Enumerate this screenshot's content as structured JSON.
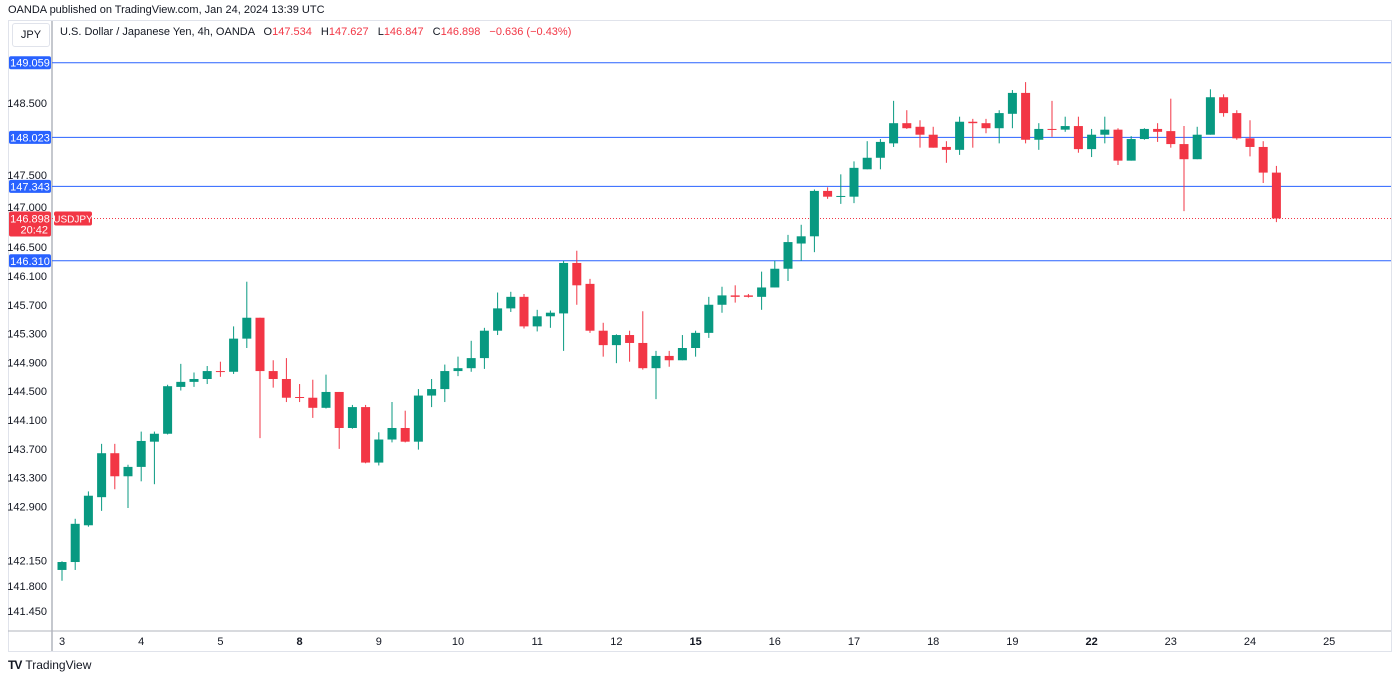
{
  "header": {
    "published": "OANDA published on TradingView.com, Jan 24, 2024 13:39 UTC"
  },
  "currency_button": "JPY",
  "legend": {
    "symbol": "U.S. Dollar / Japanese Yen, 4h, OANDA",
    "o_label": "O",
    "o": "147.534",
    "h_label": "H",
    "h": "147.627",
    "l_label": "L",
    "l": "146.847",
    "c_label": "C",
    "c": "146.898",
    "change": "−0.636 (−0.43%)"
  },
  "footer": {
    "brand": "TradingView",
    "logo": "TV"
  },
  "colors": {
    "up": "#089981",
    "down": "#f23645",
    "level": "#2962ff",
    "grid_axis": "#b2b5be"
  },
  "chart_data": {
    "type": "candlestick",
    "title": "U.S. Dollar / Japanese Yen, 4h, OANDA",
    "yaxis_position": "left",
    "ylim": [
      141.2,
      149.3
    ],
    "y_ticks": [
      "148.500",
      "147.500",
      "147.000",
      "146.500",
      "146.100",
      "145.700",
      "145.300",
      "144.900",
      "144.500",
      "144.100",
      "143.700",
      "143.300",
      "142.900",
      "142.150",
      "141.800",
      "141.450"
    ],
    "x_ticks": [
      {
        "label": "3",
        "index": 0,
        "bold": false
      },
      {
        "label": "4",
        "index": 6,
        "bold": false
      },
      {
        "label": "5",
        "index": 12,
        "bold": false
      },
      {
        "label": "8",
        "index": 18,
        "bold": true
      },
      {
        "label": "9",
        "index": 24,
        "bold": false
      },
      {
        "label": "10",
        "index": 30,
        "bold": false
      },
      {
        "label": "11",
        "index": 36,
        "bold": false
      },
      {
        "label": "12",
        "index": 42,
        "bold": false
      },
      {
        "label": "15",
        "index": 48,
        "bold": true
      },
      {
        "label": "16",
        "index": 54,
        "bold": false
      },
      {
        "label": "17",
        "index": 60,
        "bold": false
      },
      {
        "label": "18",
        "index": 66,
        "bold": false
      },
      {
        "label": "19",
        "index": 72,
        "bold": false
      },
      {
        "label": "22",
        "index": 78,
        "bold": true
      },
      {
        "label": "23",
        "index": 84,
        "bold": false
      },
      {
        "label": "24",
        "index": 90,
        "bold": false
      },
      {
        "label": "25",
        "index": 96,
        "bold": false
      }
    ],
    "levels": [
      {
        "label": "149.059",
        "value": 149.059
      },
      {
        "label": "148.023",
        "value": 148.023
      },
      {
        "label": "147.343",
        "value": 147.343
      },
      {
        "label": "146.310",
        "value": 146.31
      }
    ],
    "last_price": {
      "label": "146.898",
      "value": 146.898,
      "countdown": "20:42",
      "symbol": "USDJPY"
    },
    "ohlc": [
      [
        142.02,
        142.14,
        141.87,
        142.13
      ],
      [
        142.13,
        142.73,
        142.02,
        142.66
      ],
      [
        142.64,
        143.11,
        142.62,
        143.05
      ],
      [
        143.03,
        143.77,
        142.84,
        143.64
      ],
      [
        143.64,
        143.77,
        143.14,
        143.32
      ],
      [
        143.32,
        143.48,
        142.88,
        143.45
      ],
      [
        143.45,
        143.94,
        143.25,
        143.81
      ],
      [
        143.8,
        143.94,
        143.21,
        143.91
      ],
      [
        143.91,
        144.59,
        143.9,
        144.57
      ],
      [
        144.56,
        144.88,
        144.51,
        144.63
      ],
      [
        144.63,
        144.76,
        144.56,
        144.67
      ],
      [
        144.67,
        144.85,
        144.6,
        144.78
      ],
      [
        144.78,
        144.91,
        144.7,
        144.77
      ],
      [
        144.77,
        145.4,
        144.74,
        145.23
      ],
      [
        145.23,
        146.02,
        145.1,
        145.52
      ],
      [
        145.52,
        145.52,
        143.85,
        144.78
      ],
      [
        144.78,
        144.93,
        144.55,
        144.67
      ],
      [
        144.67,
        144.96,
        144.35,
        144.41
      ],
      [
        144.42,
        144.6,
        144.35,
        144.41
      ],
      [
        144.41,
        144.66,
        144.13,
        144.27
      ],
      [
        144.27,
        144.73,
        144.26,
        144.49
      ],
      [
        144.49,
        144.49,
        143.7,
        143.99
      ],
      [
        143.99,
        144.31,
        143.98,
        144.28
      ],
      [
        144.28,
        144.31,
        143.5,
        143.51
      ],
      [
        143.51,
        143.93,
        143.47,
        143.83
      ],
      [
        143.83,
        144.35,
        143.79,
        143.99
      ],
      [
        143.99,
        144.23,
        143.79,
        143.8
      ],
      [
        143.8,
        144.53,
        143.69,
        144.44
      ],
      [
        144.44,
        144.67,
        144.28,
        144.53
      ],
      [
        144.53,
        144.87,
        144.35,
        144.78
      ],
      [
        144.78,
        144.98,
        144.71,
        144.82
      ],
      [
        144.82,
        145.2,
        144.77,
        144.96
      ],
      [
        144.96,
        145.38,
        144.81,
        145.34
      ],
      [
        145.34,
        145.87,
        145.28,
        145.65
      ],
      [
        145.65,
        145.88,
        145.6,
        145.81
      ],
      [
        145.81,
        145.85,
        145.37,
        145.4
      ],
      [
        145.4,
        145.63,
        145.33,
        145.54
      ],
      [
        145.54,
        145.62,
        145.38,
        145.59
      ],
      [
        145.58,
        146.31,
        145.06,
        146.28
      ],
      [
        146.28,
        146.45,
        145.7,
        145.97
      ],
      [
        145.99,
        146.06,
        145.31,
        145.34
      ],
      [
        145.34,
        145.45,
        144.98,
        145.14
      ],
      [
        145.14,
        145.29,
        144.89,
        145.28
      ],
      [
        145.28,
        145.34,
        144.91,
        145.17
      ],
      [
        145.17,
        145.61,
        144.8,
        144.82
      ],
      [
        144.82,
        145.06,
        144.39,
        144.99
      ],
      [
        144.99,
        145.06,
        144.84,
        144.93
      ],
      [
        144.93,
        145.28,
        144.93,
        145.1
      ],
      [
        145.1,
        145.34,
        144.98,
        145.31
      ],
      [
        145.31,
        145.81,
        145.24,
        145.7
      ],
      [
        145.7,
        145.95,
        145.59,
        145.83
      ],
      [
        145.83,
        145.97,
        145.73,
        145.81
      ],
      [
        145.83,
        145.85,
        145.8,
        145.81
      ],
      [
        145.81,
        146.16,
        145.63,
        145.94
      ],
      [
        145.94,
        146.31,
        145.94,
        146.2
      ],
      [
        146.2,
        146.67,
        146.03,
        146.57
      ],
      [
        146.55,
        146.81,
        146.31,
        146.65
      ],
      [
        146.65,
        147.3,
        146.43,
        147.28
      ],
      [
        147.28,
        147.33,
        147.17,
        147.2
      ],
      [
        147.2,
        147.51,
        147.1,
        147.21
      ],
      [
        147.2,
        147.69,
        147.11,
        147.6
      ],
      [
        147.58,
        147.97,
        147.58,
        147.74
      ],
      [
        147.74,
        148.0,
        147.58,
        147.96
      ],
      [
        147.94,
        148.53,
        147.89,
        148.22
      ],
      [
        148.22,
        148.4,
        148.14,
        148.15
      ],
      [
        148.17,
        148.26,
        147.88,
        148.06
      ],
      [
        148.06,
        148.17,
        147.88,
        147.88
      ],
      [
        147.89,
        147.97,
        147.67,
        147.85
      ],
      [
        147.85,
        148.31,
        147.78,
        148.24
      ],
      [
        148.24,
        148.28,
        147.88,
        148.22
      ],
      [
        148.22,
        148.28,
        148.08,
        148.15
      ],
      [
        148.15,
        148.4,
        147.94,
        148.36
      ],
      [
        148.35,
        148.68,
        148.15,
        148.64
      ],
      [
        148.64,
        148.79,
        147.94,
        147.99
      ],
      [
        147.99,
        148.22,
        147.85,
        148.14
      ],
      [
        148.14,
        148.53,
        148.03,
        148.13
      ],
      [
        148.13,
        148.31,
        148.1,
        148.18
      ],
      [
        148.18,
        148.31,
        147.81,
        147.86
      ],
      [
        147.86,
        148.14,
        147.75,
        148.06
      ],
      [
        148.06,
        148.31,
        147.94,
        148.13
      ],
      [
        148.13,
        148.15,
        147.64,
        147.7
      ],
      [
        147.7,
        148.04,
        147.7,
        148.0
      ],
      [
        148.0,
        148.15,
        147.99,
        148.14
      ],
      [
        148.14,
        148.22,
        147.96,
        148.1
      ],
      [
        148.11,
        148.56,
        147.88,
        147.93
      ],
      [
        147.93,
        148.18,
        147.0,
        147.72
      ],
      [
        147.72,
        148.17,
        147.72,
        148.06
      ],
      [
        148.06,
        148.69,
        148.06,
        148.58
      ],
      [
        148.58,
        148.62,
        148.31,
        148.36
      ],
      [
        148.36,
        148.4,
        147.99,
        148.01
      ],
      [
        148.01,
        148.26,
        147.76,
        147.89
      ],
      [
        147.89,
        147.97,
        147.39,
        147.534
      ],
      [
        147.534,
        147.627,
        146.847,
        146.898
      ]
    ]
  }
}
